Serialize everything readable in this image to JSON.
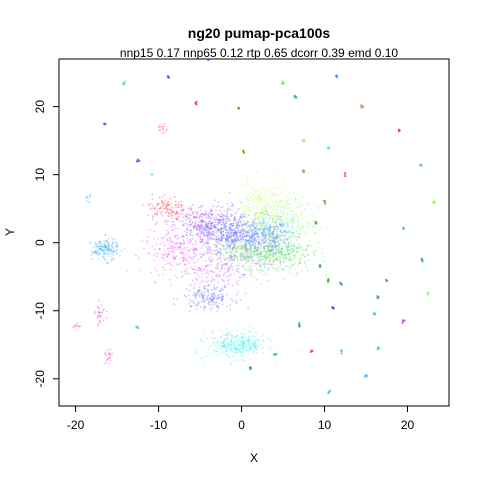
{
  "chart_data": {
    "type": "scatter",
    "title": "ng20 pumap-pca100s",
    "subtitle": "nnp15 0.17 nnp65 0.12 rtp 0.65 dcorr 0.39 emd 0.10",
    "xlabel": "X",
    "ylabel": "Y",
    "xlim": [
      -22,
      25
    ],
    "ylim": [
      -24,
      27
    ],
    "xticks": [
      -20,
      -10,
      0,
      10,
      20
    ],
    "yticks": [
      -20,
      -10,
      0,
      10,
      20
    ],
    "grid": false,
    "legend": "none",
    "clusters": [
      {
        "cx": 1.0,
        "cy": 0.0,
        "sx": 2.5,
        "sy": 1.8,
        "n": 600,
        "color": "#6a6aff"
      },
      {
        "cx": -4.5,
        "cy": 2.5,
        "sx": 2.0,
        "sy": 1.6,
        "n": 350,
        "color": "#a040ff"
      },
      {
        "cx": -7.5,
        "cy": -1.5,
        "sx": 2.2,
        "sy": 1.5,
        "n": 220,
        "color": "#ff40ff"
      },
      {
        "cx": 2.5,
        "cy": 5.0,
        "sx": 1.6,
        "sy": 2.0,
        "n": 280,
        "color": "#ccff44"
      },
      {
        "cx": 5.5,
        "cy": 3.0,
        "sx": 1.8,
        "sy": 2.0,
        "n": 250,
        "color": "#88ff88"
      },
      {
        "cx": 4.5,
        "cy": -1.5,
        "sx": 2.0,
        "sy": 1.5,
        "n": 280,
        "color": "#44dd44"
      },
      {
        "cx": 0.0,
        "cy": -1.5,
        "sx": 1.8,
        "sy": 1.0,
        "n": 250,
        "color": "#99ff66"
      },
      {
        "cx": -2.0,
        "cy": 2.0,
        "sx": 1.5,
        "sy": 1.5,
        "n": 200,
        "color": "#4466ff"
      },
      {
        "cx": -3.0,
        "cy": -4.0,
        "sx": 2.0,
        "sy": 1.2,
        "n": 150,
        "color": "#cc66ff"
      },
      {
        "cx": -9.0,
        "cy": 5.0,
        "sx": 1.2,
        "sy": 1.0,
        "n": 120,
        "color": "#ff3344"
      },
      {
        "cx": 3.5,
        "cy": 1.5,
        "sx": 1.5,
        "sy": 1.2,
        "n": 200,
        "color": "#44bbff"
      },
      {
        "cx": -4.0,
        "cy": -8.0,
        "sx": 1.5,
        "sy": 0.9,
        "n": 180,
        "color": "#6666ff"
      },
      {
        "cx": -0.5,
        "cy": -15.0,
        "sx": 1.8,
        "sy": 1.0,
        "n": 300,
        "color": "#33eeee"
      },
      {
        "cx": -16.5,
        "cy": -1.0,
        "sx": 0.8,
        "sy": 0.8,
        "n": 160,
        "color": "#33aaff"
      },
      {
        "cx": -17.0,
        "cy": -10.5,
        "sx": 0.3,
        "sy": 0.8,
        "n": 30,
        "color": "#ff22cc"
      },
      {
        "cx": -16.0,
        "cy": -17.0,
        "sx": 0.2,
        "sy": 0.6,
        "n": 20,
        "color": "#ff22cc"
      },
      {
        "cx": -20.0,
        "cy": -12.3,
        "sx": 0.3,
        "sy": 0.2,
        "n": 10,
        "color": "#ff2288"
      },
      {
        "cx": -9.5,
        "cy": 16.8,
        "sx": 0.3,
        "sy": 0.3,
        "n": 15,
        "color": "#ff2288"
      },
      {
        "cx": -18.5,
        "cy": 6.5,
        "sx": 0.2,
        "sy": 0.3,
        "n": 10,
        "color": "#3399ff"
      }
    ],
    "isolated_points": [
      {
        "x": -8.8,
        "y": 24.3,
        "color": "#5555ff"
      },
      {
        "x": -5.5,
        "y": 20.5,
        "color": "#ff2288"
      },
      {
        "x": -4.0,
        "y": 27.0,
        "color": "#6644ff"
      },
      {
        "x": -0.3,
        "y": 19.8,
        "color": "#aa7700"
      },
      {
        "x": 0.2,
        "y": 13.5,
        "color": "#aa8800"
      },
      {
        "x": 5.0,
        "y": 23.5,
        "color": "#44ff44"
      },
      {
        "x": 6.5,
        "y": 21.5,
        "color": "#22bb66"
      },
      {
        "x": 11.5,
        "y": 24.5,
        "color": "#4488ff"
      },
      {
        "x": 14.5,
        "y": 20.0,
        "color": "#cc8844"
      },
      {
        "x": 19.0,
        "y": 16.5,
        "color": "#ff3366"
      },
      {
        "x": 21.5,
        "y": 11.5,
        "color": "#44bbff"
      },
      {
        "x": 23.3,
        "y": 6.0,
        "color": "#88ff33"
      },
      {
        "x": 12.5,
        "y": 10.0,
        "color": "#ff6633"
      },
      {
        "x": 10.5,
        "y": 14.0,
        "color": "#44ddff"
      },
      {
        "x": 7.5,
        "y": 15.0,
        "color": "#88ff66"
      },
      {
        "x": -10.8,
        "y": 10.0,
        "color": "#88ff88"
      },
      {
        "x": -12.5,
        "y": 12.0,
        "color": "#4455ff"
      },
      {
        "x": -16.5,
        "y": 17.5,
        "color": "#4455ff"
      },
      {
        "x": -14.2,
        "y": 23.5,
        "color": "#44ddaa"
      },
      {
        "x": -12.5,
        "y": -12.5,
        "color": "#44dd88"
      },
      {
        "x": 19.5,
        "y": 2.0,
        "color": "#44cc44"
      },
      {
        "x": 21.8,
        "y": -2.5,
        "color": "#44aa44"
      },
      {
        "x": 22.5,
        "y": -7.5,
        "color": "#88ff66"
      },
      {
        "x": 19.5,
        "y": -11.5,
        "color": "#aa44ff"
      },
      {
        "x": 16.5,
        "y": -8.0,
        "color": "#44aa66"
      },
      {
        "x": 16.0,
        "y": -10.5,
        "color": "#44dd88"
      },
      {
        "x": 17.5,
        "y": -5.5,
        "color": "#44bb44"
      },
      {
        "x": 11.0,
        "y": -9.5,
        "color": "#4444ff"
      },
      {
        "x": 12.0,
        "y": -16.0,
        "color": "#44dd88"
      },
      {
        "x": 16.5,
        "y": -15.5,
        "color": "#44dd88"
      },
      {
        "x": 15.0,
        "y": -19.5,
        "color": "#44bbff"
      },
      {
        "x": 10.5,
        "y": -22.0,
        "color": "#44bbff"
      },
      {
        "x": 8.5,
        "y": -16.0,
        "color": "#ff4444"
      },
      {
        "x": 7.0,
        "y": -12.0,
        "color": "#22aa66"
      },
      {
        "x": 1.0,
        "y": -18.5,
        "color": "#22aa88"
      },
      {
        "x": 4.0,
        "y": -16.5,
        "color": "#22ccaa"
      },
      {
        "x": 12.0,
        "y": -6.0,
        "color": "#44aa44"
      },
      {
        "x": 10.5,
        "y": -5.5,
        "color": "#44aa44"
      },
      {
        "x": 9.5,
        "y": -3.5,
        "color": "#44aa44"
      },
      {
        "x": 10.0,
        "y": 6.0,
        "color": "#88aa44"
      },
      {
        "x": 9.0,
        "y": 3.0,
        "color": "#66aa44"
      },
      {
        "x": 7.5,
        "y": 10.5,
        "color": "#aaaa44"
      }
    ]
  }
}
